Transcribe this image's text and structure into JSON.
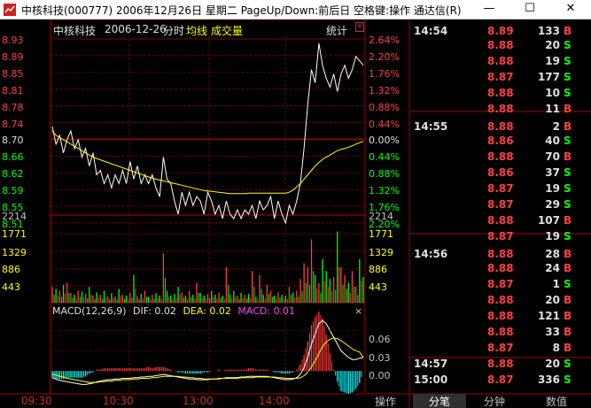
{
  "window": {
    "title": "中核科技(000777) 2006年12月26日 星期二 PageUp/Down:前后日 空格键:操作 通达信(R)",
    "min_glyph": "—",
    "max_glyph": "☐",
    "close_glyph": "✕"
  },
  "header": {
    "stock_name": "中核科技",
    "date": "2006-12-26",
    "mode": "分时",
    "avg_line": "均线",
    "volume": "成交量",
    "stats": "统计"
  },
  "price_axis": {
    "left": [
      "8.93",
      "8.89",
      "8.85",
      "8.81",
      "8.78",
      "8.74",
      "8.70",
      "8.66",
      "8.62",
      "8.59",
      "8.55",
      "8.51"
    ],
    "right": [
      "2.64%",
      "2.20%",
      "1.76%",
      "1.32%",
      "0.88%",
      "0.44%",
      "0.00%",
      "0.44%",
      "0.88%",
      "1.32%",
      "1.76%",
      "2.20%"
    ],
    "colors": [
      "#ff4040",
      "#ff4040",
      "#ff4040",
      "#ff4040",
      "#ff4040",
      "#ff4040",
      "#e0e0e0",
      "#00ff00",
      "#00ff00",
      "#00ff00",
      "#00ff00",
      "#00ff00"
    ]
  },
  "volume_axis": {
    "labels": [
      "2214",
      "1771",
      "1329",
      "886",
      "443"
    ]
  },
  "macd": {
    "name": "MACD(12,26,9)",
    "dif": "DIF: 0.02",
    "dea": "DEA: 0.02",
    "macd": "MACD: 0.01",
    "close": "×",
    "labels": [
      "0.06",
      "0.03",
      "0.00"
    ]
  },
  "x_axis": {
    "labels": [
      "09:30",
      "10:30",
      "13:00",
      "14:00"
    ]
  },
  "trades": [
    {
      "time": "14:54",
      "price": "8.89",
      "vol": "133",
      "side": "B"
    },
    {
      "time": "",
      "price": "8.88",
      "vol": "20",
      "side": "S"
    },
    {
      "time": "",
      "price": "8.88",
      "vol": "19",
      "side": "S"
    },
    {
      "time": "",
      "price": "8.87",
      "vol": "177",
      "side": "S"
    },
    {
      "time": "",
      "price": "8.88",
      "vol": "10",
      "side": "S"
    },
    {
      "time": "",
      "price": "8.88",
      "vol": "11",
      "side": "B"
    },
    {
      "time": "14:55",
      "price": "8.88",
      "vol": "2",
      "side": "B"
    },
    {
      "time": "",
      "price": "8.86",
      "vol": "40",
      "side": "S"
    },
    {
      "time": "",
      "price": "8.88",
      "vol": "70",
      "side": "B"
    },
    {
      "time": "",
      "price": "8.86",
      "vol": "37",
      "side": "S"
    },
    {
      "time": "",
      "price": "8.87",
      "vol": "19",
      "side": "S"
    },
    {
      "time": "",
      "price": "8.87",
      "vol": "29",
      "side": "S"
    },
    {
      "time": "",
      "price": "8.88",
      "vol": "107",
      "side": "B"
    },
    {
      "time": "",
      "price": "8.87",
      "vol": "19",
      "side": "S"
    },
    {
      "time": "14:56",
      "price": "8.88",
      "vol": "28",
      "side": "B"
    },
    {
      "time": "",
      "price": "8.88",
      "vol": "24",
      "side": "B"
    },
    {
      "time": "",
      "price": "8.87",
      "vol": "1",
      "side": "S"
    },
    {
      "time": "",
      "price": "8.88",
      "vol": "20",
      "side": "B"
    },
    {
      "time": "",
      "price": "8.88",
      "vol": "121",
      "side": "B"
    },
    {
      "time": "",
      "price": "8.88",
      "vol": "33",
      "side": "B"
    },
    {
      "time": "",
      "price": "8.87",
      "vol": "8",
      "side": "B"
    },
    {
      "time": "14:57",
      "price": "8.88",
      "vol": "20",
      "side": "S"
    },
    {
      "time": "15:00",
      "price": "8.87",
      "vol": "336",
      "side": "S"
    }
  ],
  "tabs": [
    "操作",
    "分笔",
    "分钟",
    "数值"
  ],
  "colors": {
    "up": "#ff4040",
    "down": "#00ff00",
    "grid": "#a00000",
    "price_line": "#ffffff",
    "avg_line": "#ffff00",
    "dif_line": "#ffffff",
    "dea_line": "#ffff00"
  },
  "chart_data": {
    "type": "line",
    "price_range": [
      8.51,
      8.93
    ],
    "prev_close": 8.7,
    "price_series": [
      8.73,
      8.69,
      8.71,
      8.67,
      8.7,
      8.72,
      8.68,
      8.7,
      8.66,
      8.68,
      8.64,
      8.67,
      8.62,
      8.63,
      8.6,
      8.62,
      8.59,
      8.62,
      8.6,
      8.63,
      8.6,
      8.65,
      8.61,
      8.64,
      8.6,
      8.62,
      8.6,
      8.62,
      8.59,
      8.57,
      8.66,
      8.61,
      8.6,
      8.56,
      8.53,
      8.58,
      8.55,
      8.58,
      8.55,
      8.57,
      8.56,
      8.53,
      8.58,
      8.56,
      8.53,
      8.55,
      8.52,
      8.56,
      8.53,
      8.52,
      8.54,
      8.52,
      8.54,
      8.53,
      8.55,
      8.52,
      8.56,
      8.54,
      8.55,
      8.57,
      8.52,
      8.56,
      8.53,
      8.51,
      8.55,
      8.53,
      8.56,
      8.6,
      8.68,
      8.78,
      8.86,
      8.83,
      8.92,
      8.87,
      8.84,
      8.82,
      8.85,
      8.81,
      8.85,
      8.87,
      8.84,
      8.86,
      8.89,
      8.88,
      8.87
    ],
    "avg_series": [
      8.72,
      8.71,
      8.705,
      8.7,
      8.695,
      8.69,
      8.685,
      8.68,
      8.675,
      8.67,
      8.665,
      8.66,
      8.657,
      8.654,
      8.651,
      8.648,
      8.645,
      8.642,
      8.639,
      8.636,
      8.633,
      8.63,
      8.627,
      8.624,
      8.621,
      8.618,
      8.615,
      8.612,
      8.61,
      8.608,
      8.606,
      8.604,
      8.602,
      8.6,
      8.598,
      8.596,
      8.594,
      8.592,
      8.59,
      8.588,
      8.586,
      8.584,
      8.583,
      8.582,
      8.581,
      8.58,
      8.579,
      8.578,
      8.577,
      8.577,
      8.577,
      8.577,
      8.577,
      8.578,
      8.578,
      8.578,
      8.578,
      8.578,
      8.578,
      8.578,
      8.578,
      8.578,
      8.578,
      8.578,
      8.58,
      8.585,
      8.592,
      8.6,
      8.61,
      8.62,
      8.63,
      8.64,
      8.648,
      8.655,
      8.66,
      8.665,
      8.67,
      8.675,
      8.678,
      8.68,
      8.683,
      8.686,
      8.69,
      8.693,
      8.696
    ],
    "volume_series": [
      400,
      350,
      300,
      450,
      500,
      250,
      200,
      300,
      280,
      220,
      400,
      180,
      260,
      200,
      300,
      160,
      240,
      150,
      350,
      200,
      180,
      250,
      700,
      160,
      220,
      300,
      150,
      200,
      240,
      180,
      1250,
      300,
      180,
      220,
      400,
      260,
      180,
      300,
      200,
      500,
      250,
      180,
      220,
      300,
      200,
      260,
      180,
      900,
      200,
      300,
      180,
      250,
      200,
      220,
      800,
      150,
      700,
      200,
      450,
      300,
      180,
      260,
      200,
      180,
      400,
      260,
      300,
      600,
      1000,
      900,
      1600,
      700,
      500,
      1100,
      800,
      600,
      650,
      1800,
      900,
      700,
      500,
      800,
      400,
      1100,
      650
    ],
    "dif_series": [
      -0.01,
      -0.012,
      -0.014,
      -0.015,
      -0.016,
      -0.017,
      -0.018,
      -0.019,
      -0.02,
      -0.02,
      -0.019,
      -0.018,
      -0.016,
      -0.015,
      -0.014,
      -0.013,
      -0.013,
      -0.012,
      -0.012,
      -0.011,
      -0.011,
      -0.011,
      -0.01,
      -0.01,
      -0.009,
      -0.009,
      -0.008,
      -0.008,
      -0.007,
      -0.006,
      -0.005,
      -0.006,
      -0.007,
      -0.008,
      -0.009,
      -0.01,
      -0.011,
      -0.012,
      -0.012,
      -0.013,
      -0.013,
      -0.013,
      -0.013,
      -0.012,
      -0.012,
      -0.011,
      -0.011,
      -0.01,
      -0.01,
      -0.01,
      -0.01,
      -0.009,
      -0.009,
      -0.008,
      -0.008,
      -0.008,
      -0.008,
      -0.008,
      -0.008,
      -0.009,
      -0.01,
      -0.011,
      -0.012,
      -0.013,
      -0.013,
      -0.012,
      -0.01,
      -0.005,
      0.005,
      0.02,
      0.04,
      0.055,
      0.07,
      0.075,
      0.07,
      0.06,
      0.05,
      0.04,
      0.03,
      0.025,
      0.02,
      0.017,
      0.017,
      0.019,
      0.02
    ],
    "dea_series": [
      -0.005,
      -0.006,
      -0.008,
      -0.009,
      -0.011,
      -0.012,
      -0.013,
      -0.014,
      -0.015,
      -0.016,
      -0.017,
      -0.017,
      -0.017,
      -0.016,
      -0.016,
      -0.015,
      -0.015,
      -0.014,
      -0.014,
      -0.013,
      -0.013,
      -0.013,
      -0.012,
      -0.012,
      -0.011,
      -0.011,
      -0.011,
      -0.01,
      -0.01,
      -0.009,
      -0.008,
      -0.008,
      -0.008,
      -0.008,
      -0.008,
      -0.009,
      -0.009,
      -0.01,
      -0.01,
      -0.011,
      -0.011,
      -0.012,
      -0.012,
      -0.012,
      -0.012,
      -0.012,
      -0.011,
      -0.011,
      -0.011,
      -0.011,
      -0.011,
      -0.01,
      -0.01,
      -0.01,
      -0.01,
      -0.009,
      -0.009,
      -0.009,
      -0.009,
      -0.009,
      -0.009,
      -0.01,
      -0.01,
      -0.011,
      -0.011,
      -0.011,
      -0.011,
      -0.01,
      -0.007,
      -0.002,
      0.006,
      0.015,
      0.026,
      0.036,
      0.043,
      0.047,
      0.049,
      0.048,
      0.045,
      0.041,
      0.037,
      0.033,
      0.03,
      0.028,
      0.02
    ],
    "macd_range": [
      -0.03,
      0.075
    ]
  }
}
